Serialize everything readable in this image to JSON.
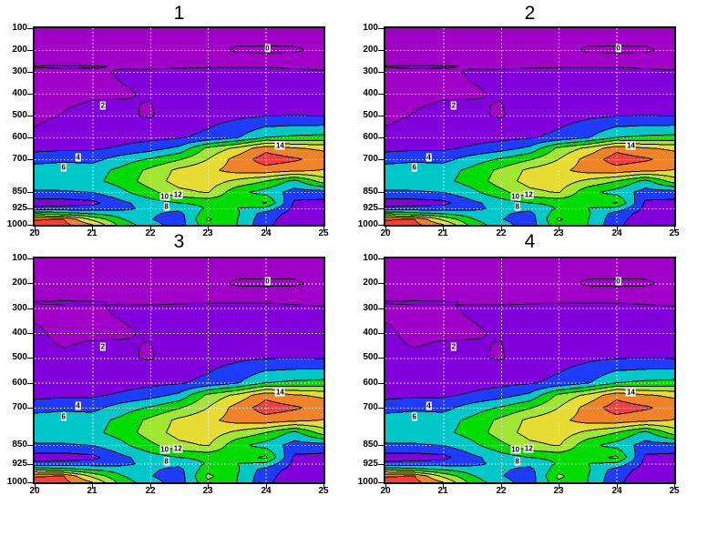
{
  "figure": {
    "background": "#ffffff"
  },
  "panels": [
    {
      "title": "1"
    },
    {
      "title": "2"
    },
    {
      "title": "3"
    },
    {
      "title": "4"
    }
  ],
  "axes": {
    "x_ticks": [
      {
        "label": "20",
        "x": 20
      },
      {
        "label": "21",
        "x": 21
      },
      {
        "label": "22",
        "x": 22
      },
      {
        "label": "23",
        "x": 23
      },
      {
        "label": "24",
        "x": 24
      },
      {
        "label": "25",
        "x": 25
      }
    ],
    "y_ticks": [
      {
        "label": "100",
        "p": 100
      },
      {
        "label": "200",
        "p": 200
      },
      {
        "label": "300",
        "p": 300
      },
      {
        "label": "400",
        "p": 400
      },
      {
        "label": "500",
        "p": 500
      },
      {
        "label": "600",
        "p": 600
      },
      {
        "label": "700",
        "p": 700
      },
      {
        "label": "850",
        "p": 850
      },
      {
        "label": "925",
        "p": 925
      },
      {
        "label": "1000",
        "p": 1000
      }
    ],
    "x_range": [
      20,
      25
    ],
    "pressure_range": [
      100,
      1000
    ],
    "grid_x": [
      21,
      22,
      23,
      24
    ],
    "grid_p": [
      200,
      300,
      400,
      500,
      600,
      700,
      850,
      925
    ],
    "grid_style": "dotted",
    "grid_color": "#ffffff"
  },
  "colors": {
    "contour_line": "#000000",
    "label_background": "#ffffff",
    "label_text": "#000000",
    "band_colors": [
      "#A000C8",
      "#A000C8",
      "#8200DC",
      "#1E3CFF",
      "#00C8C8",
      "#00DC00",
      "#A0E632",
      "#E6DC32",
      "#F08228",
      "#FA3C3C"
    ]
  },
  "chart_data": {
    "type": "filled_contour",
    "description": "2x2 grid of identical-looking pressure (hPa, linear 100-1000) vs x (20-25) filled contour cross-sections, GrADS-style rainbow shading, contour interval 2",
    "panel_titles": [
      "1",
      "2",
      "3",
      "4"
    ],
    "panel_fields": [
      "a",
      "a",
      "b",
      "b"
    ],
    "x": [
      20,
      20.5,
      21,
      21.5,
      22,
      22.5,
      23,
      23.5,
      24,
      24.5,
      25
    ],
    "pressure_levels": [
      100,
      150,
      200,
      275,
      300,
      400,
      500,
      600,
      650,
      700,
      750,
      800,
      850,
      900,
      925,
      950,
      975,
      1000
    ],
    "contour_interval": 2,
    "band_levels": [
      0,
      2,
      4,
      6,
      8,
      10,
      12,
      14,
      16
    ],
    "band_ranges": [
      "<0",
      "0-2",
      "2-4",
      "4-6",
      "6-8",
      "8-10",
      "10-12",
      "12-14",
      "14-16",
      ">16"
    ],
    "contour_point_labels": [
      {
        "v": "0",
        "x": 24.03,
        "p": 190
      },
      {
        "v": "2",
        "x": 21.18,
        "p": 455
      },
      {
        "v": "4",
        "x": 20.75,
        "p": 691
      },
      {
        "v": "6",
        "x": 20.5,
        "p": 737
      },
      {
        "v": "14",
        "x": 24.25,
        "p": 636
      },
      {
        "v": "10",
        "x": 22.25,
        "p": 870
      },
      {
        "v": "12",
        "x": 22.48,
        "p": 864
      },
      {
        "v": "8",
        "x": 22.28,
        "p": 915
      }
    ],
    "fields": {
      "a": [
        [
          0.3,
          0.3,
          0.2,
          0.2,
          0.3,
          0.3,
          0.4,
          0.4,
          0.5,
          0.4,
          0.3
        ],
        [
          0.4,
          0.4,
          0.3,
          0.3,
          0.3,
          0.4,
          0.5,
          0.6,
          0.7,
          0.6,
          0.5
        ],
        [
          0.5,
          0.5,
          0.4,
          0.5,
          0.6,
          0.7,
          0.8,
          -0.3,
          -0.4,
          -0.3,
          0.6
        ],
        [
          2.05,
          2.1,
          2.05,
          1.95,
          1.9,
          1.9,
          1.9,
          1.9,
          1.95,
          1.85,
          1.8
        ],
        [
          1.8,
          1.85,
          1.9,
          2.05,
          2.1,
          2.2,
          2.4,
          2.4,
          2.3,
          2.2,
          2.1
        ],
        [
          1.6,
          1.8,
          1.9,
          1.95,
          2.05,
          2.4,
          2.6,
          2.8,
          2.9,
          2.8,
          2.7
        ],
        [
          1.7,
          2.05,
          2.25,
          2.15,
          1.9,
          2.6,
          3.2,
          3.6,
          3.9,
          4.0,
          3.9
        ],
        [
          2.3,
          2.8,
          3.0,
          3.2,
          3.4,
          3.8,
          4.5,
          5.8,
          8.0,
          8.4,
          8.6
        ],
        [
          3.4,
          3.6,
          3.7,
          4.3,
          5.2,
          6.5,
          10.5,
          12.5,
          15.4,
          14.2,
          13.6
        ],
        [
          5.2,
          5.6,
          5.3,
          7.0,
          8.2,
          9.8,
          12.0,
          14.8,
          17.0,
          16.3,
          15.2
        ],
        [
          7.0,
          7.1,
          7.2,
          8.5,
          10.5,
          12.5,
          13.5,
          14.8,
          15.2,
          14.6,
          13.9
        ],
        [
          7.0,
          7.2,
          7.5,
          8.8,
          11.0,
          12.8,
          13.2,
          11.5,
          10.0,
          7.4,
          11.0
        ],
        [
          5.8,
          5.8,
          6.1,
          7.5,
          9.5,
          11.5,
          12.2,
          8.6,
          7.2,
          5.2,
          5.2
        ],
        [
          3.0,
          3.0,
          3.4,
          5.5,
          7.0,
          8.0,
          8.5,
          9.0,
          10.2,
          3.6,
          3.4
        ],
        [
          4.5,
          4.8,
          5.0,
          5.5,
          6.5,
          6.6,
          8.2,
          8.0,
          7.4,
          3.4,
          3.0
        ],
        [
          10.0,
          9.0,
          8.0,
          7.0,
          6.3,
          5.4,
          9.2,
          8.3,
          5.0,
          3.2,
          2.6
        ],
        [
          15.8,
          16.1,
          11.5,
          8.2,
          6.1,
          4.9,
          10.3,
          8.1,
          4.6,
          3.0,
          2.3
        ],
        [
          17.0,
          16.6,
          14.1,
          9.2,
          6.8,
          5.0,
          9.4,
          8.0,
          4.4,
          2.8,
          2.05
        ]
      ],
      "b": [
        [
          0.3,
          0.3,
          0.2,
          0.2,
          0.3,
          0.3,
          0.4,
          0.4,
          0.5,
          0.4,
          0.3
        ],
        [
          0.4,
          0.4,
          0.3,
          0.3,
          0.3,
          0.4,
          0.5,
          0.6,
          0.7,
          0.6,
          0.5
        ],
        [
          0.5,
          0.5,
          0.4,
          0.5,
          0.6,
          0.7,
          0.8,
          -0.3,
          -0.4,
          -0.3,
          0.6
        ],
        [
          2.05,
          2.1,
          2.05,
          1.95,
          1.9,
          1.9,
          1.9,
          1.9,
          1.95,
          1.85,
          1.8
        ],
        [
          1.85,
          1.9,
          1.95,
          2.05,
          2.1,
          2.2,
          2.4,
          2.4,
          2.3,
          2.2,
          2.1
        ],
        [
          2.1,
          1.85,
          1.9,
          1.95,
          2.05,
          2.4,
          2.6,
          2.8,
          2.9,
          2.8,
          2.7
        ],
        [
          2.15,
          2.1,
          2.25,
          2.15,
          1.9,
          2.6,
          3.2,
          3.6,
          3.9,
          4.0,
          3.9
        ],
        [
          2.5,
          2.8,
          3.0,
          3.2,
          3.4,
          3.8,
          4.5,
          5.8,
          8.0,
          8.4,
          8.6
        ],
        [
          3.4,
          3.6,
          3.7,
          4.3,
          5.2,
          6.5,
          10.5,
          12.5,
          15.4,
          14.2,
          13.6
        ],
        [
          5.2,
          5.6,
          5.3,
          7.0,
          8.2,
          9.8,
          12.0,
          14.8,
          17.0,
          16.3,
          15.2
        ],
        [
          7.0,
          7.1,
          7.2,
          8.5,
          10.5,
          12.5,
          13.5,
          14.8,
          15.2,
          14.6,
          13.9
        ],
        [
          7.0,
          7.2,
          7.5,
          8.8,
          11.0,
          12.8,
          13.2,
          11.5,
          10.0,
          7.4,
          11.0
        ],
        [
          5.8,
          5.8,
          6.1,
          7.5,
          9.5,
          11.5,
          12.2,
          8.6,
          7.2,
          5.2,
          5.2
        ],
        [
          3.0,
          3.0,
          3.4,
          5.5,
          7.0,
          8.0,
          8.5,
          9.0,
          10.4,
          3.6,
          3.4
        ],
        [
          4.5,
          4.8,
          5.0,
          5.5,
          6.5,
          6.6,
          8.2,
          8.0,
          7.6,
          3.4,
          3.0
        ],
        [
          10.0,
          9.0,
          8.0,
          7.0,
          6.3,
          5.4,
          9.2,
          8.3,
          5.0,
          3.2,
          2.6
        ],
        [
          15.8,
          16.1,
          11.5,
          8.2,
          6.1,
          4.9,
          10.5,
          8.1,
          4.6,
          3.0,
          2.3
        ],
        [
          17.0,
          16.6,
          14.1,
          9.2,
          6.8,
          5.0,
          9.6,
          8.0,
          4.4,
          2.8,
          2.05
        ]
      ]
    }
  }
}
